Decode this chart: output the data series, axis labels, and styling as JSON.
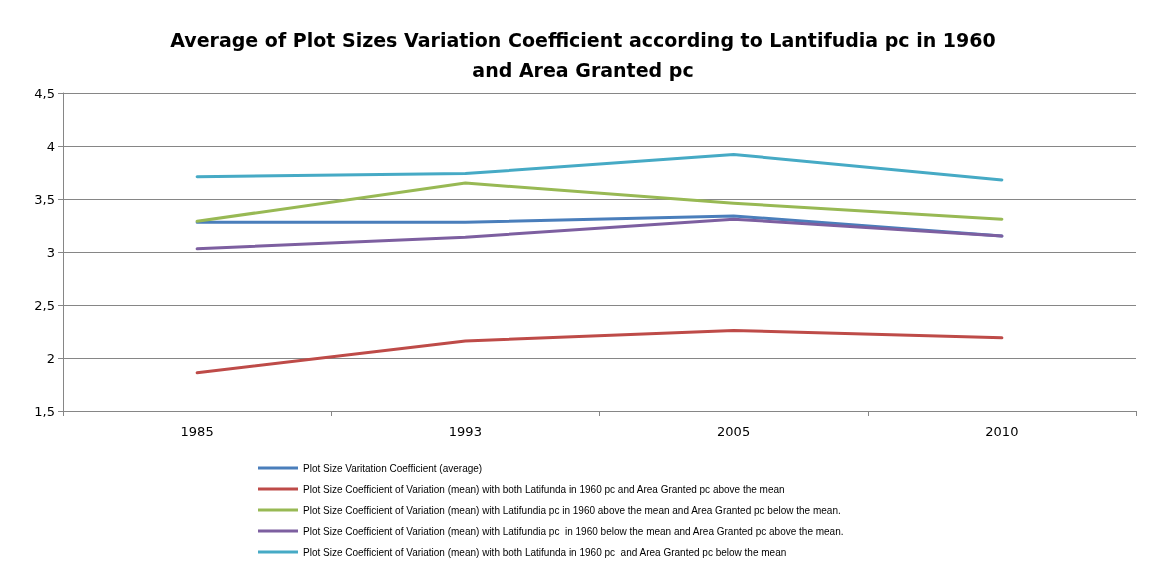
{
  "chart_data": {
    "type": "line",
    "title": "Average of Plot Sizes Variation Coefficient according to Lantifudia pc in 1960\nand Area Granted pc",
    "categories": [
      "1985",
      "1993",
      "2005",
      "2010"
    ],
    "series": [
      {
        "name": "Plot Size Varitation Coefficient (average)",
        "color": "#4a7ebb",
        "values": [
          3.28,
          3.28,
          3.34,
          3.15
        ]
      },
      {
        "name": "Plot Size Coefficient of Variation (mean) with both Latifunda in 1960 pc and Area Granted pc above the mean",
        "color": "#be4b48",
        "values": [
          1.86,
          2.16,
          2.26,
          2.19
        ]
      },
      {
        "name": "Plot Size Coefficient of Variation (mean) with Latifundia pc in 1960 above the mean and Area Granted pc below the mean.",
        "color": "#98b954",
        "values": [
          3.29,
          3.65,
          3.46,
          3.31
        ]
      },
      {
        "name": "Plot Size Coefficient of Variation (mean) with Latifundia pc  in 1960 below the mean and Area Granted pc above the mean.",
        "color": "#7d5fa0",
        "values": [
          3.03,
          3.14,
          3.31,
          3.15
        ]
      },
      {
        "name": "Plot Size Coefficient of Variation (mean) with both Latifunda in 1960 pc  and Area Granted pc below the mean",
        "color": "#46aac5",
        "values": [
          3.71,
          3.74,
          3.92,
          3.68
        ]
      }
    ],
    "ylim": [
      1.5,
      4.5
    ],
    "yticks": [
      {
        "value": 1.5,
        "label": "1,5"
      },
      2,
      {
        "value": 2.5,
        "label": "2,5"
      },
      3,
      {
        "value": 3.5,
        "label": "3,5"
      },
      4,
      {
        "value": 4.5,
        "label": "4,5"
      }
    ],
    "grid": "y",
    "legend": "bottom",
    "marker": "none",
    "line_style": "solid"
  }
}
